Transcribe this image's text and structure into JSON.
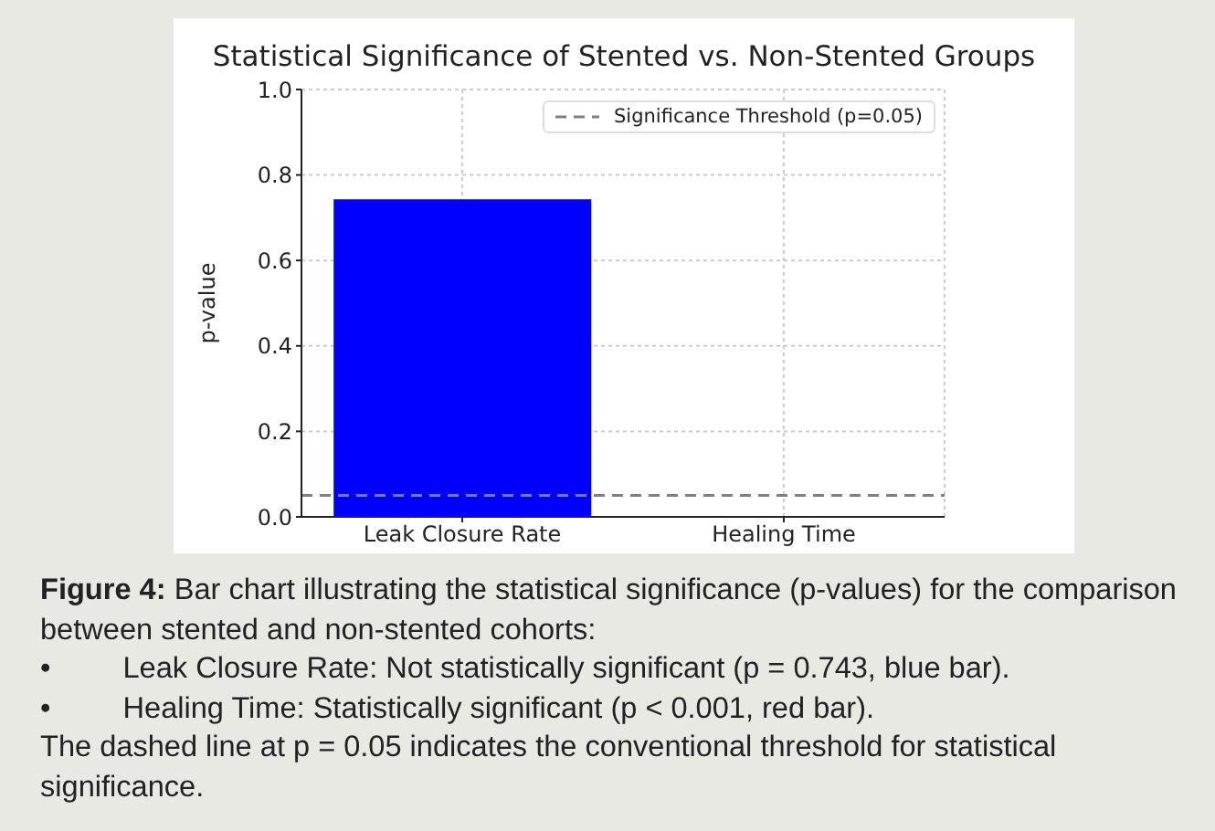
{
  "chart_data": {
    "type": "bar",
    "title": "Statistical Significance of Stented vs. Non-Stented Groups",
    "ylabel": "p-value",
    "categories": [
      "Leak Closure Rate",
      "Healing Time"
    ],
    "values": [
      0.743,
      0
    ],
    "colors": [
      "#0000ff",
      "#ff0000"
    ],
    "ylim": [
      0,
      1
    ],
    "yticks": [
      {
        "value": 0,
        "label": "0.0"
      },
      0.2,
      0.4,
      0.6,
      0.8,
      {
        "value": 1,
        "label": "1.0"
      }
    ],
    "grid": true,
    "legend": "top right",
    "ref_lines": [
      {
        "axis": "y",
        "value": 0.05,
        "label": "Significance Threshold (p=0.05)",
        "color": "#808080",
        "line_style": "dashed"
      }
    ],
    "annotations": [
      "Figure 4:",
      "Bar chart illustrating the statistical significance (p-values) for the comparison between stented and non-stented cohorts:",
      "•\tLeak Closure Rate: Not statistically significant (p = 0.743, blue bar).",
      "•\tHealing Time: Statistically significant (p < 0.001, red bar).",
      "The dashed line at p = 0.05 indicates the conventional threshold for statistical significance."
    ]
  }
}
